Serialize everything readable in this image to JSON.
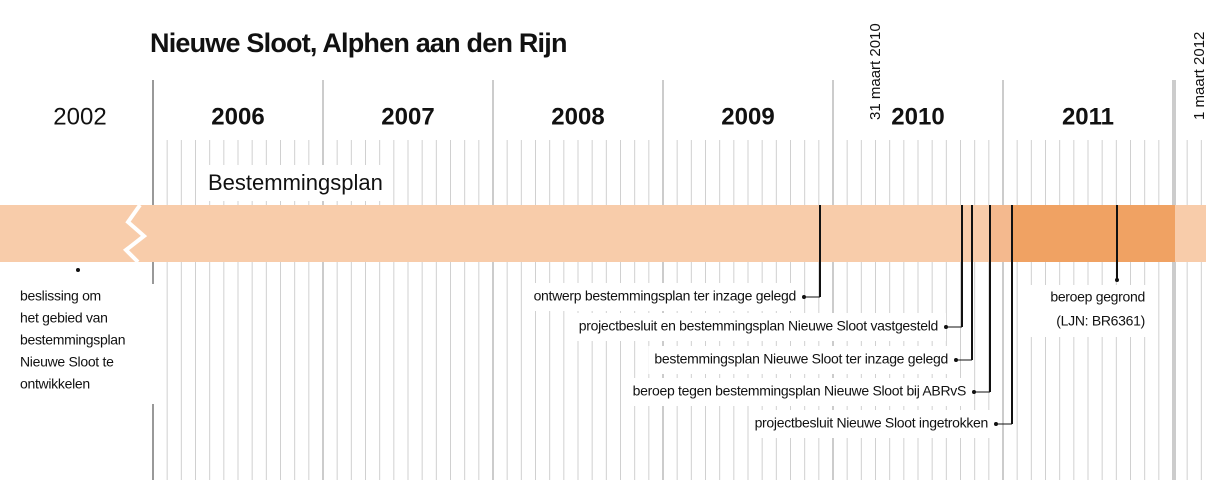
{
  "title": "Nieuwe Sloot, Alphen aan den Rijn",
  "years": [
    "2002",
    "2006",
    "2007",
    "2008",
    "2009",
    "2010",
    "2011"
  ],
  "date_markers": [
    "31 maart 2010",
    "1 maart 2012"
  ],
  "band_label": "Bestemmingsplan",
  "start_event": {
    "lines": [
      "beslissing om",
      "het gebied van",
      "bestemmingsplan",
      "Nieuwe Sloot te",
      "ontwikkelen"
    ]
  },
  "events": [
    {
      "label": "ontwerp bestemmingsplan ter inzage gelegd"
    },
    {
      "label": "projectbesluit en bestemmingsplan Nieuwe Sloot vastgesteld"
    },
    {
      "label": "bestemmingsplan Nieuwe Sloot ter inzage gelegd"
    },
    {
      "label": "beroep tegen bestemmingsplan Nieuwe Sloot bij ABRvS"
    },
    {
      "label": "projectbesluit Nieuwe Sloot ingetrokken"
    }
  ],
  "end_event": {
    "lines": [
      "beroep gegrond",
      "(LJN: BR6361)"
    ]
  }
}
